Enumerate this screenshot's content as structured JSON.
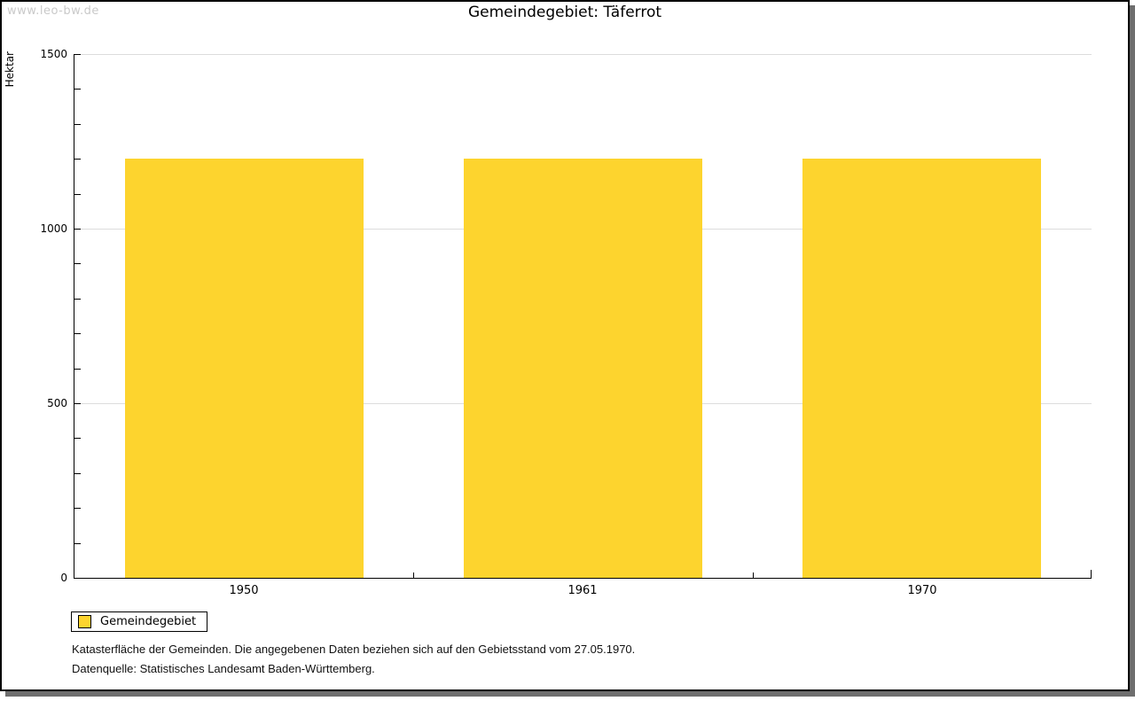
{
  "watermark": "www.leo-bw.de",
  "header": {
    "title": "Gemeindegebiet: Täferrot"
  },
  "legend": {
    "label": "Gemeindegebiet"
  },
  "footer": {
    "footnote": "Katasterfläche der Gemeinden. Die angegebenen Daten beziehen sich auf den Gebietsstand vom 27.05.1970.",
    "source": "Datenquelle: Statistisches Landesamt Baden-Württemberg."
  },
  "colors": {
    "bar": "#fdd42e",
    "grid": "#dcdcdc",
    "axis": "#000000",
    "watermark": "#c9c9c9",
    "shadow": "#6e6e6e"
  },
  "chart_data": {
    "type": "bar",
    "title": "Gemeindegebiet: Täferrot",
    "categories": [
      "1950",
      "1961",
      "1970"
    ],
    "series": [
      {
        "name": "Gemeindegebiet",
        "values": [
          1200,
          1200,
          1200
        ]
      }
    ],
    "xlabel": "",
    "ylabel": "Hektar",
    "ylim": [
      0,
      1500
    ],
    "ytick_major": 500,
    "ytick_minor": 100,
    "grid": "horizontal-major-only",
    "legend_position": "bottom-left",
    "bar_color": "#fdd42e"
  }
}
